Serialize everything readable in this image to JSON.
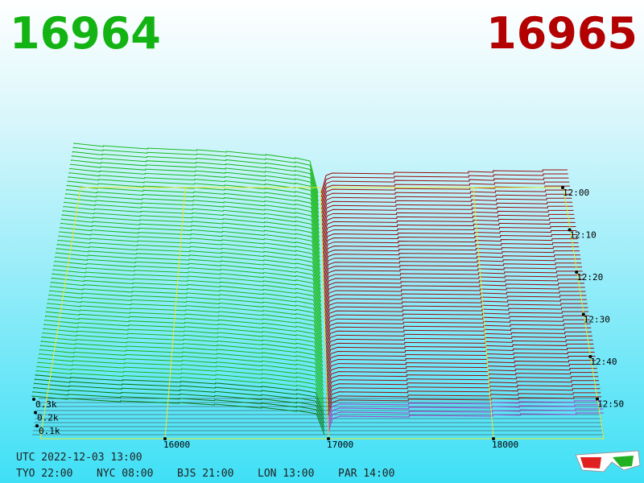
{
  "header": {
    "bid": "16964",
    "ask": "16965"
  },
  "price_labels": [
    "16000",
    "17000",
    "18000"
  ],
  "depth_labels": [
    "0.3k",
    "0.2k",
    "0.1k"
  ],
  "time_labels": [
    "12:00",
    "12:10",
    "12:20",
    "12:30",
    "12:40",
    "12:50"
  ],
  "footer": {
    "utc": "UTC 2022-12-03 13:00",
    "clocks": [
      "TYO 22:00",
      "NYC 08:00",
      "BJS 21:00",
      "LON 13:00",
      "PAR 14:00"
    ]
  }
}
